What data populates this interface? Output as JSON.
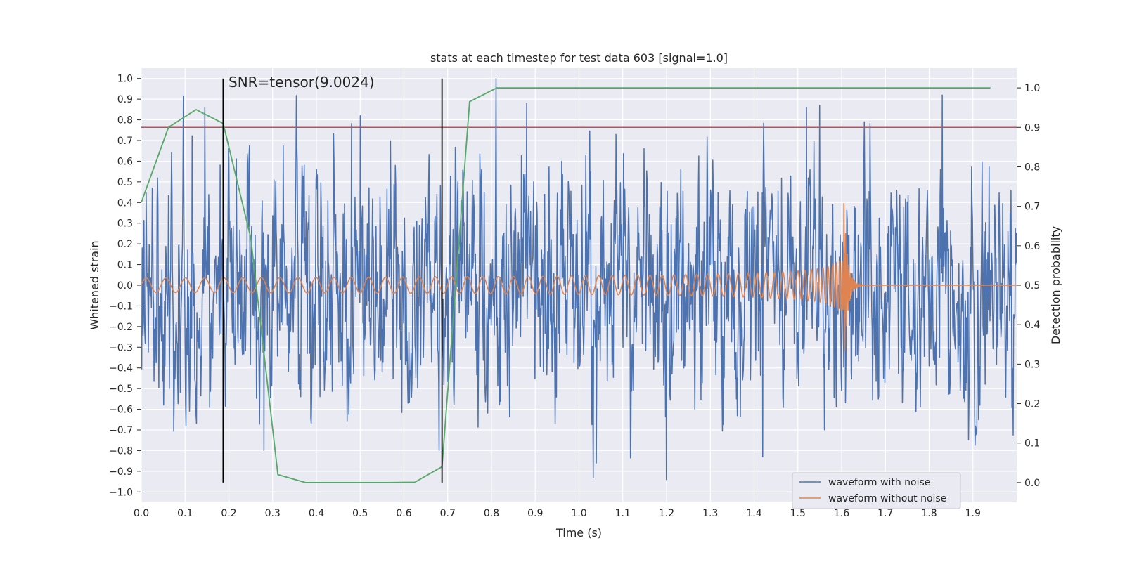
{
  "chart_data": {
    "type": "line",
    "title": "stats at each timestep for test data 603 [signal=1.0]",
    "xlabel": "Time (s)",
    "ylabel": "Whitened strain",
    "y2label": "Detection probability",
    "xlim": [
      0.0,
      2.0
    ],
    "ylim": [
      -1.05,
      1.05
    ],
    "y2lim": [
      -0.05,
      1.05
    ],
    "xticks": [
      "0.0",
      "0.1",
      "0.2",
      "0.3",
      "0.4",
      "0.5",
      "0.6",
      "0.7",
      "0.8",
      "0.9",
      "1.0",
      "1.1",
      "1.2",
      "1.3",
      "1.4",
      "1.5",
      "1.6",
      "1.7",
      "1.8",
      "1.9"
    ],
    "yticks": [
      "1.0",
      "0.9",
      "0.8",
      "0.7",
      "0.6",
      "0.5",
      "0.4",
      "0.3",
      "0.2",
      "0.1",
      "0.0",
      "−0.1",
      "−0.2",
      "−0.3",
      "−0.4",
      "−0.5",
      "−0.6",
      "−0.7",
      "−0.8",
      "−0.9",
      "−1.0"
    ],
    "y2ticks": [
      "1.0",
      "0.9",
      "0.8",
      "0.7",
      "0.6",
      "0.5",
      "0.4",
      "0.3",
      "0.2",
      "0.1",
      "0.0"
    ],
    "grid": true,
    "legend_position": "lower-right",
    "annotation": "SNR=tensor(9.0024)",
    "series": [
      {
        "name": "waveform with noise",
        "color": "#4c72b0",
        "axis": "left",
        "noise_std": 0.25,
        "peaks": [
          [
            0.145,
            0.86
          ],
          [
            0.5,
            0.82
          ],
          [
            0.81,
            1.0
          ],
          [
            0.88,
            0.88
          ],
          [
            1.52,
            0.86
          ],
          [
            1.55,
            0.87
          ],
          [
            1.83,
            0.92
          ],
          [
            1.2,
            -0.94
          ],
          [
            1.04,
            -0.86
          ],
          [
            1.42,
            -0.83
          ],
          [
            0.28,
            -0.8
          ],
          [
            0.68,
            -0.8
          ]
        ]
      },
      {
        "name": "waveform without noise",
        "color": "#dd8452",
        "axis": "left",
        "chirp": {
          "start_freq": 22,
          "end_time": 1.605,
          "base_amp": 0.035,
          "peak_amp": 0.42,
          "ringdown_end": 1.64
        }
      },
      {
        "name": "",
        "color": "#55a868",
        "axis": "right",
        "x": [
          0.0,
          0.062,
          0.125,
          0.187,
          0.25,
          0.312,
          0.375,
          0.437,
          0.5,
          0.562,
          0.625,
          0.687,
          0.75,
          0.812,
          0.875,
          1.0,
          1.25,
          1.5,
          1.75,
          1.94
        ],
        "y": [
          0.71,
          0.9,
          0.945,
          0.91,
          0.62,
          0.02,
          0.0,
          0.0,
          0.0,
          0.0,
          0.001,
          0.04,
          0.965,
          1.0,
          1.0,
          1.0,
          1.0,
          1.0,
          1.0,
          1.0
        ]
      }
    ],
    "threshold": {
      "color": "#c44e52",
      "axis": "right",
      "value": 0.9
    },
    "vlines": [
      {
        "x": 0.187,
        "color": "#000000"
      },
      {
        "x": 0.687,
        "color": "#000000"
      }
    ]
  }
}
